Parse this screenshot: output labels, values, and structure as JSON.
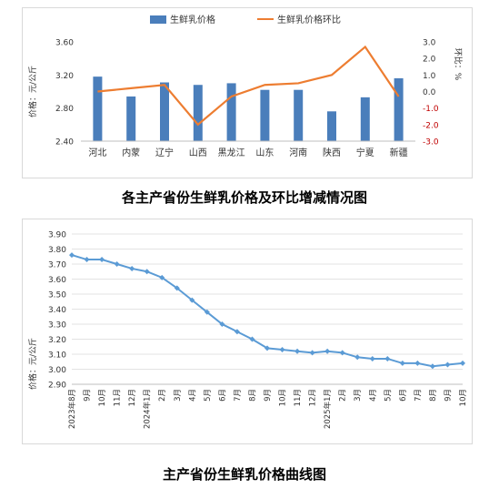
{
  "chart_data": [
    {
      "type": "bar",
      "caption": "各主产省份生鲜乳价格及环比增减情况图",
      "categories": [
        "河北",
        "内蒙",
        "辽宁",
        "山西",
        "黑龙江",
        "山东",
        "河南",
        "陕西",
        "宁夏",
        "新疆"
      ],
      "ylabel": "价格：元/公斤",
      "y2label": "环比：%",
      "ylim": [
        2.4,
        3.6
      ],
      "yticks": [
        "2.40",
        "2.80",
        "3.20",
        "3.60"
      ],
      "y2lim": [
        -3.0,
        3.0
      ],
      "y2ticks": [
        "-3.0",
        "-2.0",
        "-1.0",
        "0.0",
        "1.0",
        "2.0",
        "3.0"
      ],
      "legend_position": "top-center",
      "series": [
        {
          "name": "生鲜乳价格",
          "type": "bar",
          "axis": "left",
          "color": "#4a7ebb",
          "values": [
            3.18,
            2.94,
            3.11,
            3.08,
            3.1,
            3.02,
            3.02,
            2.76,
            2.93,
            3.16
          ]
        },
        {
          "name": "生鲜乳价格环比",
          "type": "line",
          "axis": "right",
          "color": "#ed7d31",
          "values": [
            0.0,
            0.2,
            0.4,
            -2.0,
            -0.3,
            0.4,
            0.5,
            1.0,
            2.7,
            -0.3
          ]
        }
      ]
    },
    {
      "type": "line",
      "caption": "主产省份生鲜乳价格曲线图",
      "ylabel": "价格：元/公斤",
      "ylim": [
        2.9,
        3.9
      ],
      "yticks": [
        "2.90",
        "3.00",
        "3.10",
        "3.20",
        "3.30",
        "3.40",
        "3.50",
        "3.60",
        "3.70",
        "3.80",
        "3.90"
      ],
      "categories": [
        "2023年8月",
        "9月",
        "10月",
        "11月",
        "12月",
        "2024年1月",
        "2月",
        "3月",
        "4月",
        "5月",
        "6月",
        "7月",
        "8月",
        "9月",
        "10月",
        "11月",
        "12月",
        "2025年1月",
        "2月",
        "3月",
        "4月",
        "5月",
        "6月",
        "7月",
        "8月",
        "9月",
        "10月"
      ],
      "series": [
        {
          "name": "生鲜乳价格",
          "color": "#5b9bd5",
          "values": [
            3.76,
            3.73,
            3.73,
            3.7,
            3.67,
            3.65,
            3.61,
            3.54,
            3.46,
            3.38,
            3.3,
            3.25,
            3.2,
            3.14,
            3.13,
            3.12,
            3.11,
            3.12,
            3.11,
            3.08,
            3.07,
            3.07,
            3.04,
            3.04,
            3.02,
            3.03,
            3.04
          ]
        }
      ]
    }
  ]
}
